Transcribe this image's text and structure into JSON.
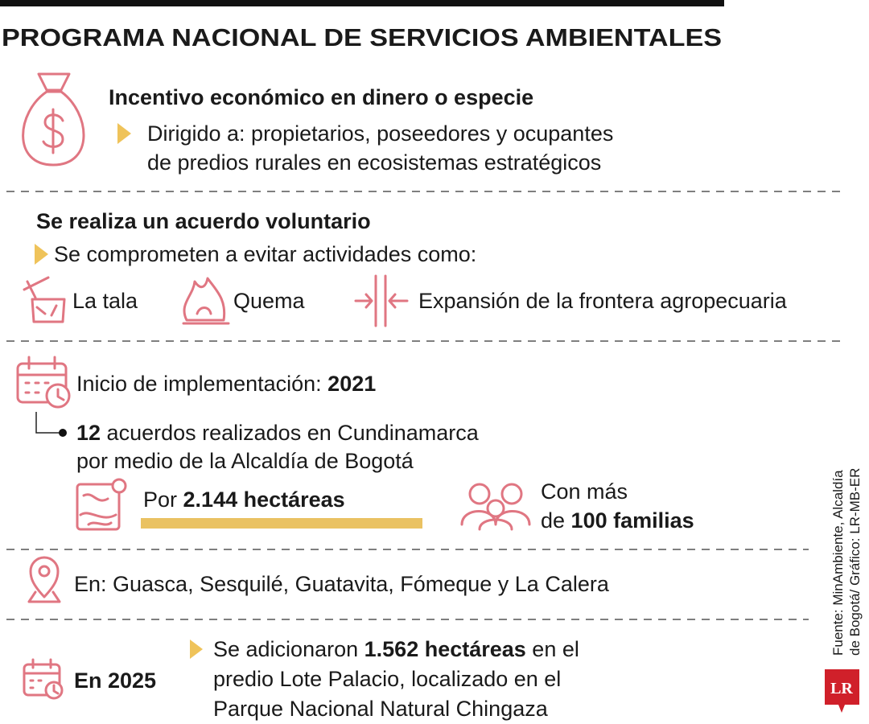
{
  "header": {
    "title": "PROGRAMA NACIONAL DE SERVICIOS AMBIENTALES"
  },
  "incentive": {
    "heading": "Incentivo económico en dinero o especie",
    "target_lines": [
      "Dirigido a: propietarios, poseedores y ocupantes",
      "de predios rurales en ecosistemas estratégicos"
    ]
  },
  "agreement": {
    "heading": "Se realiza un acuerdo voluntario",
    "intro": "Se comprometen a evitar actividades como:",
    "activities": [
      "La tala",
      "Quema",
      "Expansión de la frontera agropecuaria"
    ]
  },
  "implementation": {
    "label": "Inicio de implementación: ",
    "year": "2021",
    "agreements": {
      "count": "12",
      "line1_rest": " acuerdos realizados en Cundinamarca",
      "line2": "por medio de la Alcaldía de Bogotá"
    },
    "area": {
      "prefix": "Por ",
      "value": "2.144 hectáreas"
    },
    "families": {
      "line1": "Con más",
      "prefix": "de ",
      "value": "100 familias"
    }
  },
  "locations": "En: Guasca, Sesquilé, Guatavita, Fómeque y La Calera",
  "update": {
    "label": "En 2025",
    "line1": {
      "prefix": "Se adicionaron ",
      "value": "1.562 hectáreas",
      "suffix": " en el"
    },
    "line2": "predio Lote Palacio, localizado en el",
    "line3": "Parque Nacional Natural Chingaza"
  },
  "source": {
    "lines": [
      "Fuente: MinAmbiente, Alcaldía",
      "de Bogotá/ Gráfico: LR-MB-ER"
    ]
  },
  "logo": "LR"
}
